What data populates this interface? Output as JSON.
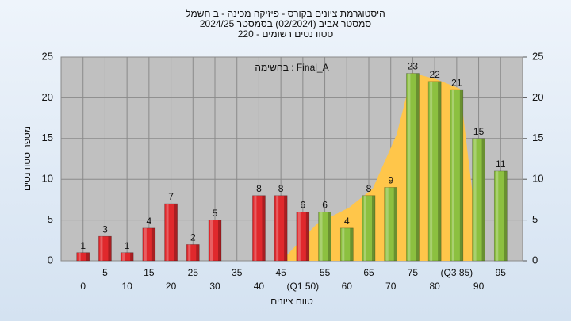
{
  "chart_data": {
    "type": "bar",
    "title": "היסטוגרמת ציונים בקורס - פיזיקה מכינה - ב חשמל",
    "subtitle": "2024/25  סמסטר אביב  (02/2024)  בסמסטר",
    "subtitle2": "220 - סטודנטים רשומים",
    "annotation": "בחשימה : Final_A",
    "x_label": "טווח ציונים",
    "y_label": "מספר סטודנטים",
    "categories": [
      "0",
      "5",
      "10",
      "15",
      "20",
      "25",
      "30",
      "35",
      "40",
      "45",
      "(Q1 50)",
      "55",
      "60",
      "65",
      "70",
      "75",
      "80",
      "(Q3 85)",
      "90",
      "95"
    ],
    "values": [
      1,
      3,
      1,
      4,
      7,
      2,
      5,
      null,
      8,
      8,
      6,
      6,
      4,
      8,
      9,
      23,
      22,
      21,
      15,
      11
    ],
    "colors": [
      "#e0282c",
      "#e0282c",
      "#e0282c",
      "#e0282c",
      "#e0282c",
      "#e0282c",
      "#e0282c",
      "#e0282c",
      "#e0282c",
      "#e0282c",
      "#e0282c",
      "#8cc040",
      "#8cc040",
      "#8cc040",
      "#8cc040",
      "#8cc040",
      "#8cc040",
      "#8cc040",
      "#8cc040",
      "#8cc040"
    ],
    "ylim": [
      0,
      25
    ],
    "yticks": [
      0,
      5,
      10,
      15,
      20,
      25
    ],
    "y2lim": [
      0,
      25
    ],
    "y2ticks": [
      0,
      5,
      10,
      15,
      20,
      25
    ],
    "grid": true
  }
}
